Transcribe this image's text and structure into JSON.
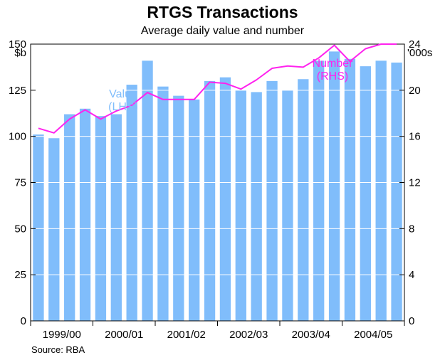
{
  "chart_data": {
    "type": "bar",
    "title": "RTGS Transactions",
    "subtitle": "Average daily value and number",
    "source": "Source: RBA",
    "left_axis": {
      "unit_label": "$b",
      "ylim": [
        0,
        150
      ],
      "ticks": [
        0,
        25,
        50,
        75,
        100,
        125,
        150
      ]
    },
    "right_axis": {
      "unit_label": "'000s",
      "ylim": [
        0,
        24
      ],
      "ticks": [
        0,
        4,
        8,
        12,
        16,
        20,
        24
      ]
    },
    "x_tick_labels": [
      "1999/00",
      "2000/01",
      "2001/02",
      "2002/03",
      "2003/04",
      "2004/05"
    ],
    "series": [
      {
        "name": "Value",
        "axis": "LHS",
        "type": "bar",
        "color": "#80bdfb",
        "label_lines": [
          "Value",
          "(LHS)"
        ],
        "values": [
          101,
          99,
          112,
          115,
          111,
          112,
          128,
          141,
          127,
          122,
          120,
          130,
          132,
          125,
          124,
          130,
          125,
          131,
          141,
          146,
          142,
          138,
          141,
          140
        ]
      },
      {
        "name": "Number",
        "axis": "RHS",
        "type": "line",
        "color": "#ff22ee",
        "label_lines": [
          "Number",
          "(RHS)"
        ],
        "values": [
          16.7,
          16.3,
          17.5,
          18.3,
          17.5,
          18.2,
          18.7,
          19.8,
          19.2,
          19.2,
          19.2,
          20.7,
          20.6,
          20.1,
          20.9,
          21.9,
          22.1,
          22.0,
          22.8,
          23.9,
          22.5,
          23.6,
          24.0,
          24.0
        ]
      }
    ],
    "grid": true,
    "grid_color": "#ffffff",
    "plot_background": "#ffffff",
    "series_label_positions": [
      "upper-left",
      "top-right"
    ]
  }
}
